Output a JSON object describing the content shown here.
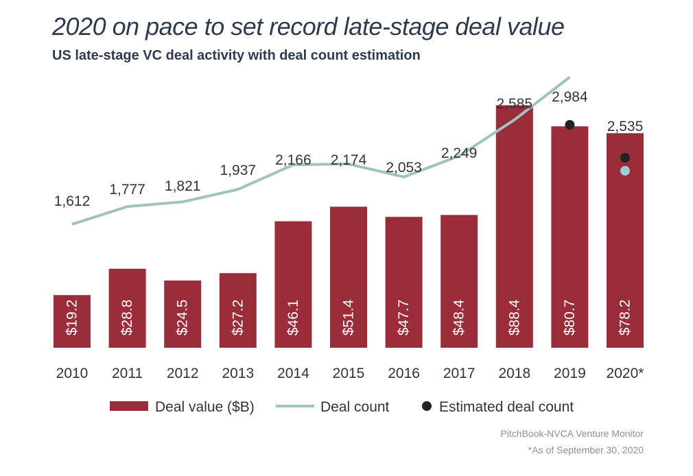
{
  "title": "2020 on pace to set record late-stage deal value",
  "subtitle": "US late-stage VC deal activity with deal count estimation",
  "source": "PitchBook-NVCA Venture Monitor",
  "footnote": "*As of September 30, 2020",
  "colors": {
    "bar": "#9b2c3a",
    "line": "#9fc4bd",
    "estimate_dot": "#222222",
    "current_dot": "#9fcbd3",
    "text": "#333333",
    "title": "#2e3a50"
  },
  "chart_data": {
    "type": "bar",
    "categories": [
      "2010",
      "2011",
      "2012",
      "2013",
      "2014",
      "2015",
      "2016",
      "2017",
      "2018",
      "2019",
      "2020*"
    ],
    "series": [
      {
        "name": "Deal value ($B)",
        "type": "bar",
        "values": [
          19.2,
          28.8,
          24.5,
          27.2,
          46.1,
          51.4,
          47.7,
          48.4,
          88.4,
          80.7,
          78.2
        ],
        "labels": [
          "$19.2",
          "$28.8",
          "$24.5",
          "$27.2",
          "$46.1",
          "$51.4",
          "$47.7",
          "$48.4",
          "$88.4",
          "$80.7",
          "$78.2"
        ]
      },
      {
        "name": "Deal count",
        "type": "line",
        "values": [
          1612,
          1777,
          1821,
          1937,
          2166,
          2174,
          2053,
          2249,
          2585,
          2984,
          2535
        ],
        "labels": [
          "1,612",
          "1,777",
          "1,821",
          "1,937",
          "2,166",
          "2,174",
          "2,053",
          "2,249",
          "2,585",
          "2,984",
          "2,535"
        ]
      },
      {
        "name": "Estimated deal count",
        "type": "scatter",
        "points": [
          {
            "category": "2019",
            "value": 2984
          },
          {
            "category": "2020*",
            "value": 2535
          }
        ]
      }
    ],
    "current_count_2020": 2320,
    "legend": [
      "Deal value ($B)",
      "Deal count",
      "Estimated deal count"
    ],
    "legend_position": "bottom",
    "grid": false,
    "value_ylim": [
      0,
      100
    ],
    "count_ylim": [
      0,
      4500
    ]
  }
}
